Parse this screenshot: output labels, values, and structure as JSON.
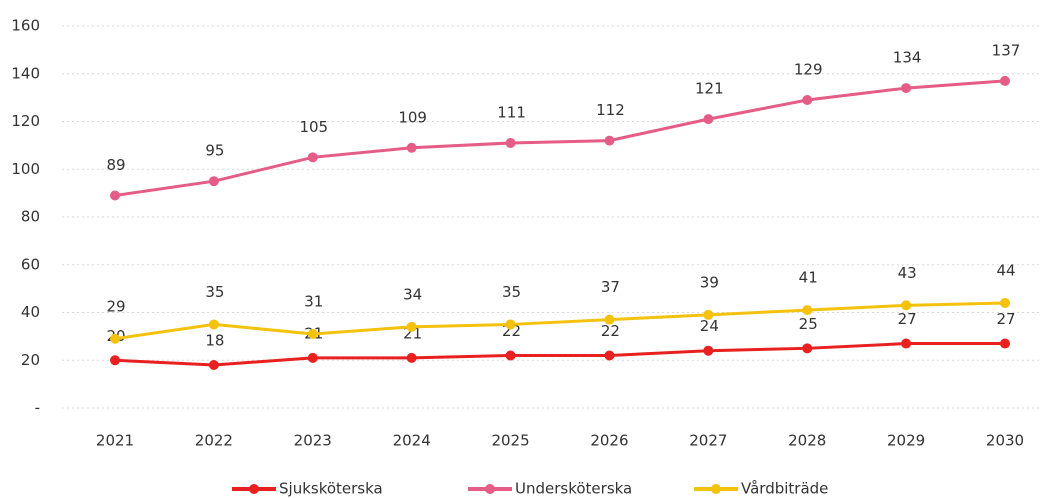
{
  "chart_data": {
    "type": "line",
    "categories": [
      "2021",
      "2022",
      "2023",
      "2024",
      "2025",
      "2026",
      "2027",
      "2028",
      "2029",
      "2030"
    ],
    "series": [
      {
        "name": "Sjuksköterska",
        "color": "#e8201f",
        "values": [
          20,
          18,
          21,
          21,
          22,
          22,
          24,
          25,
          27,
          27
        ]
      },
      {
        "name": "Undersköterska",
        "color": "#e55c86",
        "values": [
          89,
          95,
          105,
          109,
          111,
          112,
          121,
          129,
          134,
          137
        ]
      },
      {
        "name": "Vårdbiträde",
        "color": "#f4c20d",
        "values": [
          29,
          35,
          31,
          34,
          35,
          37,
          39,
          41,
          43,
          44
        ]
      }
    ],
    "ylim": [
      0,
      160
    ],
    "yticks": [
      {
        "value": 0,
        "label": "-"
      },
      20,
      40,
      60,
      80,
      100,
      120,
      140,
      160
    ],
    "grid": true,
    "legend": "bottom"
  }
}
